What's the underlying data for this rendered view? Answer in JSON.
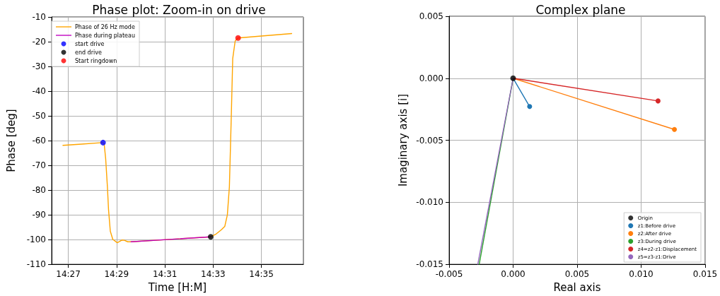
{
  "chart_data": [
    {
      "type": "line",
      "title": "Phase plot: Zoom-in on drive",
      "xlabel": "Time [H:M]",
      "ylabel": "Phase [deg]",
      "xlim": [
        14.4385,
        14.6123
      ],
      "ylim": [
        -110,
        -10
      ],
      "xticks": [
        {
          "value": 14.45,
          "label": "14:27"
        },
        {
          "value": 14.4833,
          "label": "14:29"
        },
        {
          "value": 14.5167,
          "label": "14:31"
        },
        {
          "value": 14.55,
          "label": "14:33"
        },
        {
          "value": 14.5833,
          "label": "14:35"
        }
      ],
      "yticks": [
        -110,
        -100,
        -90,
        -80,
        -70,
        -60,
        -50,
        -40,
        -30,
        -20,
        -10
      ],
      "grid": true,
      "legend": "top left",
      "series": [
        {
          "name": "Phase of 26 Hz mode",
          "type": "line",
          "marker": "none",
          "color": "#ffa500",
          "x": [
            14.4463,
            14.4592,
            14.4735,
            14.4747,
            14.4758,
            14.477,
            14.4778,
            14.479,
            14.4807,
            14.4838,
            14.4853,
            14.487,
            14.4887,
            14.491,
            14.4933,
            14.5483,
            14.5517,
            14.5555,
            14.558,
            14.5598,
            14.5612,
            14.5625,
            14.5635,
            14.5652,
            14.5672,
            14.5818,
            14.6042
          ],
          "values": [
            -61.9,
            -61.4,
            -60.8,
            -61,
            -67.3,
            -78.7,
            -88.1,
            -96.6,
            -99.9,
            -101.3,
            -100.8,
            -100.2,
            -100.3,
            -100.9,
            -100.9,
            -98.9,
            -97.9,
            -96.1,
            -94.7,
            -90,
            -78.7,
            -50.4,
            -26.8,
            -19.7,
            -18.5,
            -17.8,
            -16.7
          ]
        },
        {
          "name": "Phase during plateau",
          "type": "line",
          "marker": "none",
          "color": "#c000c0",
          "x": [
            14.4933,
            14.5483
          ],
          "values": [
            -100.9,
            -98.9
          ]
        },
        {
          "name": "start drive",
          "type": "scatter",
          "marker": "circle",
          "color": "#0000ff",
          "x": [
            14.474
          ],
          "values": [
            -60.8
          ]
        },
        {
          "name": "end drive",
          "type": "scatter",
          "marker": "circle",
          "color": "#000000",
          "x": [
            14.5483
          ],
          "values": [
            -98.9
          ]
        },
        {
          "name": "Start ringdown",
          "type": "scatter",
          "marker": "circle",
          "color": "#ff0000",
          "x": [
            14.5672
          ],
          "values": [
            -18.5
          ]
        }
      ]
    },
    {
      "type": "line",
      "title": "Complex plane",
      "xlabel": "Real axis",
      "ylabel": "Imaginary axis [i]",
      "xlim": [
        -0.005,
        0.015
      ],
      "ylim": [
        -0.015,
        0.005
      ],
      "xticks": [
        {
          "value": -0.005,
          "label": "-0.005"
        },
        {
          "value": 0,
          "label": "0.000"
        },
        0.005,
        {
          "value": 0.01,
          "label": "0.010"
        },
        0.015
      ],
      "yticks": [
        {
          "value": -0.015,
          "label": "-0.015"
        },
        {
          "value": -0.01,
          "label": "-0.010"
        },
        {
          "value": -0.005,
          "label": "-0.005"
        },
        {
          "value": 0,
          "label": "0.000"
        },
        0.005
      ],
      "grid": true,
      "legend": "bottom right",
      "marker": "circle",
      "series": [
        {
          "name": "Origin",
          "type": "scatter",
          "color": "#000000",
          "x": [
            0
          ],
          "values": [
            0
          ]
        },
        {
          "name": "z1:Before drive",
          "color": "#1f77b4",
          "x": [
            0,
            0.00129
          ],
          "values": [
            0,
            -0.00228
          ]
        },
        {
          "name": "z2:After drive",
          "color": "#ff7f0e",
          "x": [
            0,
            0.0126
          ],
          "values": [
            0,
            -0.00413
          ]
        },
        {
          "name": "z3:During drive",
          "marker": "none",
          "color": "#2ca02c",
          "x": [
            0,
            -0.00265
          ],
          "values": [
            0,
            -0.015
          ]
        },
        {
          "name": "z4=z2-z1:Displacement",
          "color": "#d62728",
          "x": [
            0,
            0.01132
          ],
          "values": [
            0,
            -0.00183
          ]
        },
        {
          "name": "z5=z3-z1:Drive",
          "marker": "none",
          "color": "#9467bd",
          "x": [
            0,
            -0.00276
          ],
          "values": [
            0,
            -0.015
          ]
        }
      ]
    }
  ]
}
